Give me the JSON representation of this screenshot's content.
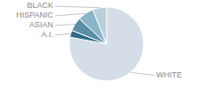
{
  "chart_data": {
    "type": "pie",
    "categories": [
      "WHITE",
      "A.I.",
      "ASIAN",
      "HISPANIC",
      "BLACK"
    ],
    "values": [
      78,
      3,
      6,
      7,
      6
    ],
    "colors": [
      "#d4dde8",
      "#2e6b8a",
      "#5b8fa8",
      "#8ab4c8",
      "#b8d0dc"
    ]
  }
}
